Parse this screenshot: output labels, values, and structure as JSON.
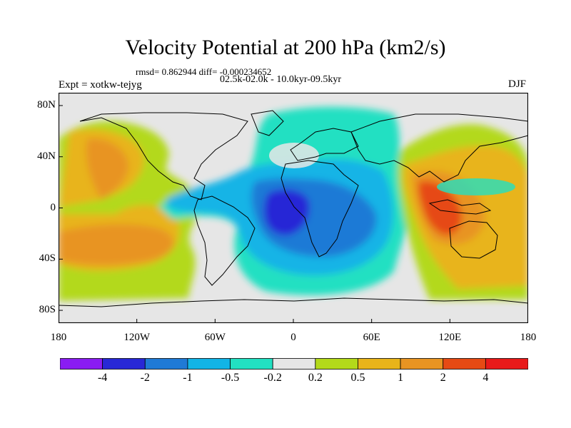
{
  "title": "Velocity Potential at 200 hPa (km2/s)",
  "stats": "rmsd= 0.862944 diff= -0.000234652",
  "experiment": "Expt = xotkw-tejyg",
  "period": "02.5k-02.0k - 10.0kyr-09.5kyr",
  "season": "DJF",
  "map": {
    "projection": "cylindrical equidistant",
    "lon_range": [
      -180,
      180
    ],
    "lat_range": [
      -90,
      90
    ],
    "lat_ticks": [
      {
        "value": 80,
        "label": "80N"
      },
      {
        "value": 40,
        "label": "40N"
      },
      {
        "value": 0,
        "label": "0"
      },
      {
        "value": -40,
        "label": "40S"
      },
      {
        "value": -80,
        "label": "80S"
      }
    ],
    "lon_ticks": [
      {
        "value": -180,
        "label": "180"
      },
      {
        "value": -120,
        "label": "120W"
      },
      {
        "value": -60,
        "label": "60W"
      },
      {
        "value": 0,
        "label": "0"
      },
      {
        "value": 60,
        "label": "60E"
      },
      {
        "value": 120,
        "label": "120E"
      },
      {
        "value": 180,
        "label": "180"
      }
    ],
    "background_color": "#e6e6e6",
    "coastline_color": "#000000"
  },
  "colorbar": {
    "colors": [
      "#8a1cf2",
      "#2828d6",
      "#1f7ad6",
      "#12b4e6",
      "#22e0c2",
      "#e6e6e6",
      "#b3d91a",
      "#e8b41a",
      "#e89422",
      "#e64a14",
      "#e81a1a"
    ],
    "labels": [
      "-4",
      "-2",
      "-1",
      "-0.5",
      "-0.2",
      "0.2",
      "0.5",
      "1",
      "2",
      "4"
    ]
  }
}
